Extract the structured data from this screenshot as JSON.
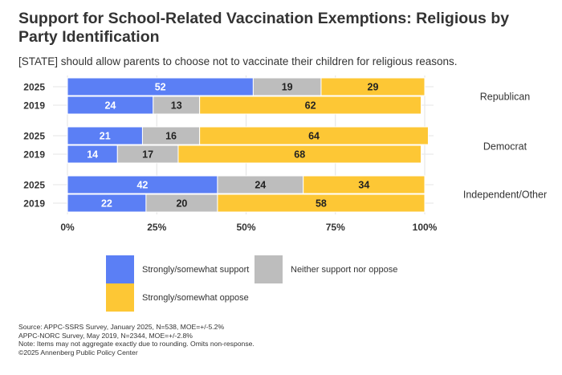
{
  "title": "Support for School-Related Vaccination Exemptions: Religious by Party Identification",
  "subtitle": "[STATE] should allow parents to choose not to vaccinate their children for religious reasons.",
  "colors": {
    "support": "#5b7ff5",
    "neither": "#bdbdbd",
    "oppose": "#fdc735"
  },
  "legend": {
    "support": "Strongly/somewhat support",
    "neither": "Neither support nor oppose",
    "oppose": "Strongly/somewhat oppose"
  },
  "source": [
    "Source: APPC-SSRS Survey, January 2025, N=538, MOE=+/-5.2%",
    "APPC-NORC Survey, May 2019, N=2344, MOE=+/-2.8%",
    "Note: Items may not aggregate exactly due to rounding. Omits non-response.",
    "©2025 Annenberg Public Policy Center"
  ],
  "chart_data": {
    "type": "bar",
    "orientation": "horizontal",
    "stacked": true,
    "x_ticks": [
      "0%",
      "25%",
      "50%",
      "75%",
      "100%"
    ],
    "xlim": [
      0,
      100
    ],
    "legend_position": "bottom",
    "grid": true,
    "groups": [
      {
        "label": "Republican",
        "rows": [
          {
            "year": "2025",
            "support": 52,
            "neither": 19,
            "oppose": 29
          },
          {
            "year": "2019",
            "support": 24,
            "neither": 13,
            "oppose": 62
          }
        ]
      },
      {
        "label": "Democrat",
        "rows": [
          {
            "year": "2025",
            "support": 21,
            "neither": 16,
            "oppose": 64
          },
          {
            "year": "2019",
            "support": 14,
            "neither": 17,
            "oppose": 68
          }
        ]
      },
      {
        "label": "Independent/Other",
        "rows": [
          {
            "year": "2025",
            "support": 42,
            "neither": 24,
            "oppose": 34
          },
          {
            "year": "2019",
            "support": 22,
            "neither": 20,
            "oppose": 58
          }
        ]
      }
    ]
  }
}
